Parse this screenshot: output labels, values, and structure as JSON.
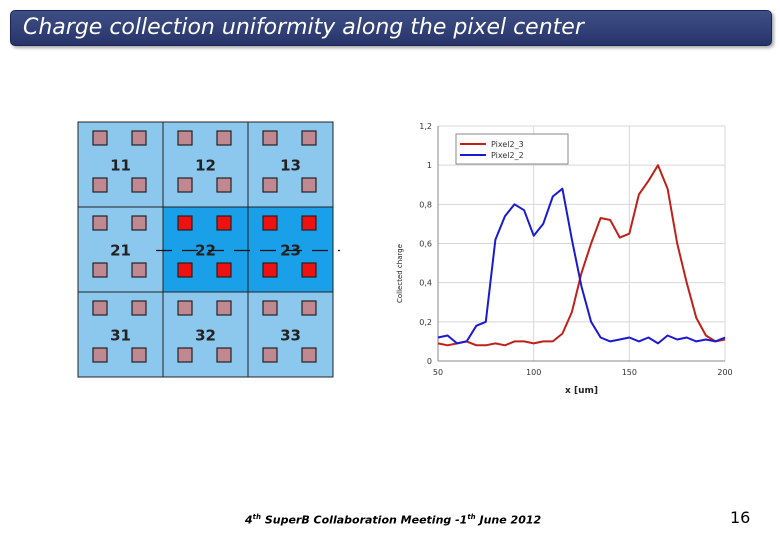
{
  "slide": {
    "title": "Charge collection uniformity along the pixel center",
    "page_number": "16",
    "footer": {
      "ord1": "4",
      "ord1_sup": "th",
      "text1": " SuperB Collaboration Meeting -1",
      "ord2_sup": "th",
      "text2": " June 2012"
    }
  },
  "pixel_grid": {
    "cells": [
      {
        "label": "11",
        "pad_color": "#c08890"
      },
      {
        "label": "12",
        "pad_color": "#c08890"
      },
      {
        "label": "13",
        "pad_color": "#c08890"
      },
      {
        "label": "21",
        "pad_color": "#c08890"
      },
      {
        "label": "22",
        "pad_color": "#ee1111",
        "highlight": true
      },
      {
        "label": "23",
        "pad_color": "#ee1111",
        "highlight": true
      },
      {
        "label": "31",
        "pad_color": "#c08890"
      },
      {
        "label": "32",
        "pad_color": "#c08890"
      },
      {
        "label": "33",
        "pad_color": "#c08890"
      }
    ],
    "cell_color": "#8cc8ee",
    "highlight_color": "#1aa0e8"
  },
  "chart_data": {
    "type": "line",
    "xlabel": "x [um]",
    "ylabel": "Collected charge",
    "xlim": [
      50,
      200
    ],
    "ylim": [
      0,
      1.2
    ],
    "x_ticks": [
      50,
      100,
      150,
      200
    ],
    "y_ticks": [
      "0",
      "0,2",
      "0,4",
      "0,6",
      "0,8",
      "1",
      "1,2"
    ],
    "legend_position": "top-left",
    "series": [
      {
        "name": "Pixel2_3",
        "color": "#c0201a",
        "x": [
          50,
          55,
          60,
          65,
          70,
          75,
          80,
          85,
          90,
          95,
          100,
          105,
          110,
          115,
          120,
          125,
          130,
          135,
          140,
          145,
          150,
          155,
          160,
          165,
          170,
          175,
          180,
          185,
          190,
          195,
          200
        ],
        "y": [
          0.09,
          0.08,
          0.09,
          0.1,
          0.08,
          0.08,
          0.09,
          0.08,
          0.1,
          0.1,
          0.09,
          0.1,
          0.1,
          0.14,
          0.25,
          0.45,
          0.6,
          0.73,
          0.72,
          0.63,
          0.65,
          0.85,
          0.92,
          1.0,
          0.88,
          0.6,
          0.4,
          0.22,
          0.13,
          0.1,
          0.11
        ]
      },
      {
        "name": "Pixel2_2",
        "color": "#1a1ad0",
        "x": [
          50,
          55,
          60,
          65,
          70,
          75,
          80,
          85,
          90,
          95,
          100,
          105,
          110,
          115,
          120,
          125,
          130,
          135,
          140,
          145,
          150,
          155,
          160,
          165,
          170,
          175,
          180,
          185,
          190,
          195,
          200
        ],
        "y": [
          0.12,
          0.13,
          0.09,
          0.1,
          0.18,
          0.2,
          0.62,
          0.74,
          0.8,
          0.77,
          0.64,
          0.7,
          0.84,
          0.88,
          0.62,
          0.38,
          0.2,
          0.12,
          0.1,
          0.11,
          0.12,
          0.1,
          0.12,
          0.09,
          0.13,
          0.11,
          0.12,
          0.1,
          0.11,
          0.1,
          0.12
        ]
      }
    ]
  }
}
